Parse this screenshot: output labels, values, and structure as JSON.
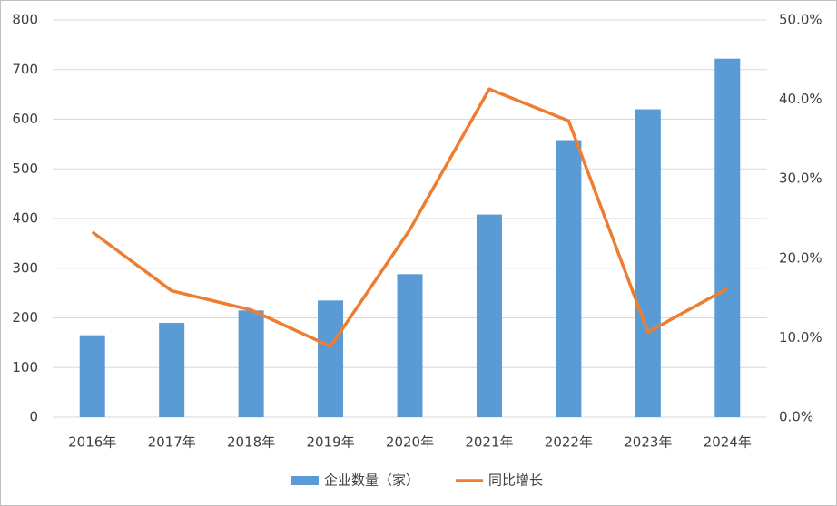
{
  "chart_data": {
    "type": "bar-line",
    "categories": [
      "2016年",
      "2017年",
      "2018年",
      "2019年",
      "2020年",
      "2021年",
      "2022年",
      "2023年",
      "2024年"
    ],
    "series": [
      {
        "name": "企业数量（家）",
        "type": "bar",
        "color": "#5b9bd5",
        "values": [
          165,
          190,
          215,
          235,
          288,
          408,
          558,
          620,
          722
        ]
      },
      {
        "name": "同比增长",
        "type": "line",
        "axis": "y2",
        "color": "#ed7d31",
        "values": [
          23.3,
          15.9,
          13.5,
          8.9,
          23.6,
          41.3,
          37.3,
          10.7,
          16.2
        ]
      }
    ],
    "ylim": [
      0,
      800
    ],
    "yticks": [
      0,
      100,
      200,
      300,
      400,
      500,
      600,
      700,
      800
    ],
    "y2lim": [
      0,
      50
    ],
    "y2ticks": [
      {
        "value": 0,
        "label": "0.0%"
      },
      {
        "value": 10,
        "label": "10.0%"
      },
      {
        "value": 20,
        "label": "20.0%"
      },
      {
        "value": 30,
        "label": "30.0%"
      },
      {
        "value": 40,
        "label": "40.0%"
      },
      {
        "value": 50,
        "label": "50.0%"
      }
    ],
    "grid": true,
    "legend": "bottom"
  }
}
